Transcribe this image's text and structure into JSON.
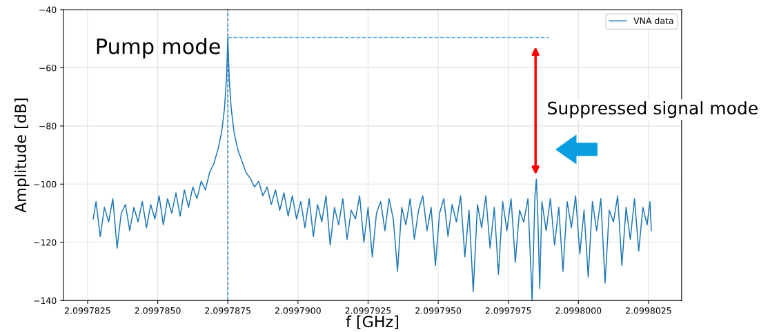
{
  "chart_data": {
    "type": "line",
    "xlabel": "f [GHz]",
    "ylabel": "Amplitude [dB]",
    "xlim": [
      2.09978164,
      2.09980368
    ],
    "ylim": [
      -140,
      -40
    ],
    "xticks": [
      {
        "value": 2.0997825,
        "label": "2.0997825"
      },
      {
        "value": 2.099785,
        "label": "2.0997850"
      },
      {
        "value": 2.0997875,
        "label": "2.0997875"
      },
      {
        "value": 2.09979,
        "label": "2.0997900"
      },
      {
        "value": 2.0997925,
        "label": "2.0997925"
      },
      {
        "value": 2.099795,
        "label": "2.0997950"
      },
      {
        "value": 2.0997975,
        "label": "2.0997975"
      },
      {
        "value": 2.0998,
        "label": "2.0998000"
      },
      {
        "value": 2.0998025,
        "label": "2.0998025"
      }
    ],
    "yticks": [
      {
        "value": -140,
        "label": "−140"
      },
      {
        "value": -120,
        "label": "−120"
      },
      {
        "value": -100,
        "label": "−100"
      },
      {
        "value": -80,
        "label": "−80"
      },
      {
        "value": -60,
        "label": "−60"
      },
      {
        "value": -40,
        "label": "−40"
      }
    ],
    "grid": true,
    "legend": "top right",
    "series": [
      {
        "name": "VNA data",
        "color": "#1f77b4",
        "line_style": "solid",
        "x": [
          2.0997827,
          2.0997828,
          2.09978295,
          2.0997831,
          2.09978325,
          2.0997834,
          2.09978355,
          2.0997837,
          2.09978385,
          2.099784,
          2.09978415,
          2.0997843,
          2.09978445,
          2.0997846,
          2.09978475,
          2.0997849,
          2.09978505,
          2.0997852,
          2.09978535,
          2.0997855,
          2.09978565,
          2.0997858,
          2.09978595,
          2.0997861,
          2.09978625,
          2.0997864,
          2.09978655,
          2.0997867,
          2.09978685,
          2.099787,
          2.09978715,
          2.09978728,
          2.09978738,
          2.09978745,
          2.0997875,
          2.09978755,
          2.09978762,
          2.09978772,
          2.09978785,
          2.099788,
          2.09978815,
          2.0997883,
          2.09978845,
          2.0997886,
          2.09978875,
          2.0997889,
          2.09978905,
          2.0997892,
          2.09978935,
          2.0997895,
          2.09978965,
          2.0997898,
          2.09978995,
          2.0997901,
          2.09979025,
          2.0997904,
          2.09979055,
          2.0997907,
          2.09979085,
          2.099791,
          2.09979115,
          2.0997913,
          2.09979145,
          2.0997916,
          2.09979175,
          2.0997919,
          2.09979205,
          2.0997922,
          2.09979235,
          2.0997925,
          2.09979265,
          2.0997928,
          2.09979295,
          2.0997931,
          2.09979325,
          2.0997934,
          2.09979355,
          2.0997937,
          2.09979385,
          2.099794,
          2.09979415,
          2.0997943,
          2.09979445,
          2.0997946,
          2.09979475,
          2.0997949,
          2.09979505,
          2.0997952,
          2.09979535,
          2.0997955,
          2.09979565,
          2.0997958,
          2.09979595,
          2.0997961,
          2.09979625,
          2.0997964,
          2.09979655,
          2.0997967,
          2.09979685,
          2.099797,
          2.09979715,
          2.0997973,
          2.09979745,
          2.0997976,
          2.09979775,
          2.0997979,
          2.09979805,
          2.0997982,
          2.09979835,
          2.09979845,
          2.0997985,
          2.09979855,
          2.09979862,
          2.0997987,
          2.09979885,
          2.099799,
          2.09979915,
          2.0997993,
          2.09979945,
          2.0997996,
          2.09979975,
          2.0997999,
          2.09980005,
          2.0998002,
          2.09980035,
          2.0998005,
          2.09980065,
          2.0998008,
          2.09980095,
          2.0998011,
          2.09980125,
          2.0998014,
          2.09980155,
          2.0998017,
          2.09980185,
          2.099802,
          2.09980215,
          2.0998023,
          2.09980245,
          2.09980255,
          2.0998026
        ],
        "values": [
          -112,
          -106,
          -118,
          -108,
          -113,
          -105,
          -122,
          -110,
          -107,
          -116,
          -108,
          -113,
          -106,
          -115,
          -107,
          -112,
          -104,
          -114,
          -105,
          -110,
          -103,
          -111,
          -102,
          -108,
          -101,
          -105,
          -99,
          -102,
          -96,
          -93,
          -88,
          -82,
          -74,
          -64,
          -49.6,
          -64,
          -74,
          -82,
          -88,
          -92,
          -96,
          -98,
          -101,
          -99,
          -104,
          -101,
          -107,
          -102,
          -109,
          -103,
          -111,
          -104,
          -112,
          -106,
          -115,
          -105,
          -118,
          -107,
          -113,
          -104,
          -121,
          -108,
          -114,
          -105,
          -119,
          -109,
          -112,
          -104,
          -120,
          -108,
          -125,
          -110,
          -106,
          -116,
          -105,
          -112,
          -130,
          -108,
          -114,
          -105,
          -119,
          -109,
          -104,
          -116,
          -108,
          -128,
          -110,
          -105,
          -118,
          -107,
          -113,
          -104,
          -125,
          -109,
          -137,
          -107,
          -115,
          -104,
          -122,
          -108,
          -131,
          -106,
          -116,
          -105,
          -127,
          -109,
          -113,
          -105,
          -140,
          -104,
          -98.3,
          -110,
          -136,
          -106,
          -116,
          -105,
          -121,
          -108,
          -130,
          -106,
          -115,
          -104,
          -124,
          -109,
          -132,
          -106,
          -116,
          -105,
          -134,
          -109,
          -113,
          -104,
          -128,
          -108,
          -119,
          -105,
          -123,
          -108,
          -114,
          -106,
          -116
        ]
      },
      {
        "color": "#5dade2",
        "line_style": "dashed",
        "x": [
          2.0997875,
          2.09979894
        ],
        "values": [
          -49.6,
          -49.6
        ]
      }
    ],
    "ref_lines": [
      {
        "axis": "x",
        "value": 2.0997875,
        "color": "#1f77b4",
        "line_style": "dashed"
      }
    ],
    "annotations": [
      "Pump mode",
      "Suppressed signal mode"
    ]
  }
}
